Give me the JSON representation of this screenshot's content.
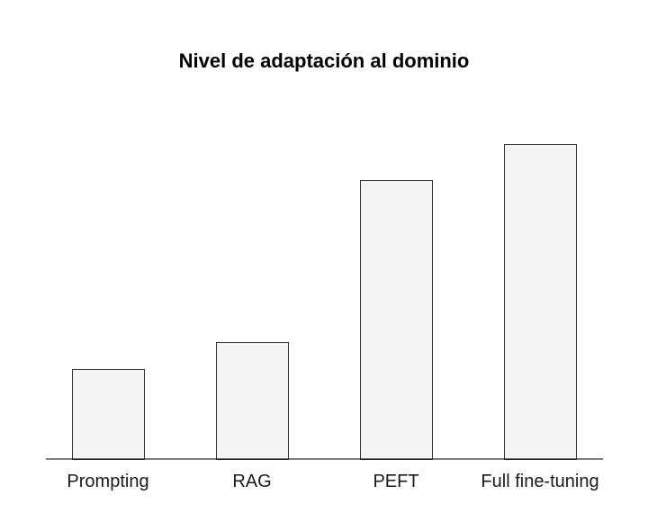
{
  "chart_data": {
    "type": "bar",
    "title": "Nivel de adaptación al dominio",
    "xlabel": "",
    "ylabel": "",
    "categories": [
      "Prompting",
      "RAG",
      "PEFT",
      "Full fine-tuning"
    ],
    "values": [
      100,
      130,
      310,
      350
    ],
    "ylim": [
      0,
      400
    ],
    "grid": false,
    "legend": "none",
    "colors": {
      "bar_fill": "#f4f4f4",
      "bar_stroke": "#333333",
      "axis": "#000000"
    }
  }
}
